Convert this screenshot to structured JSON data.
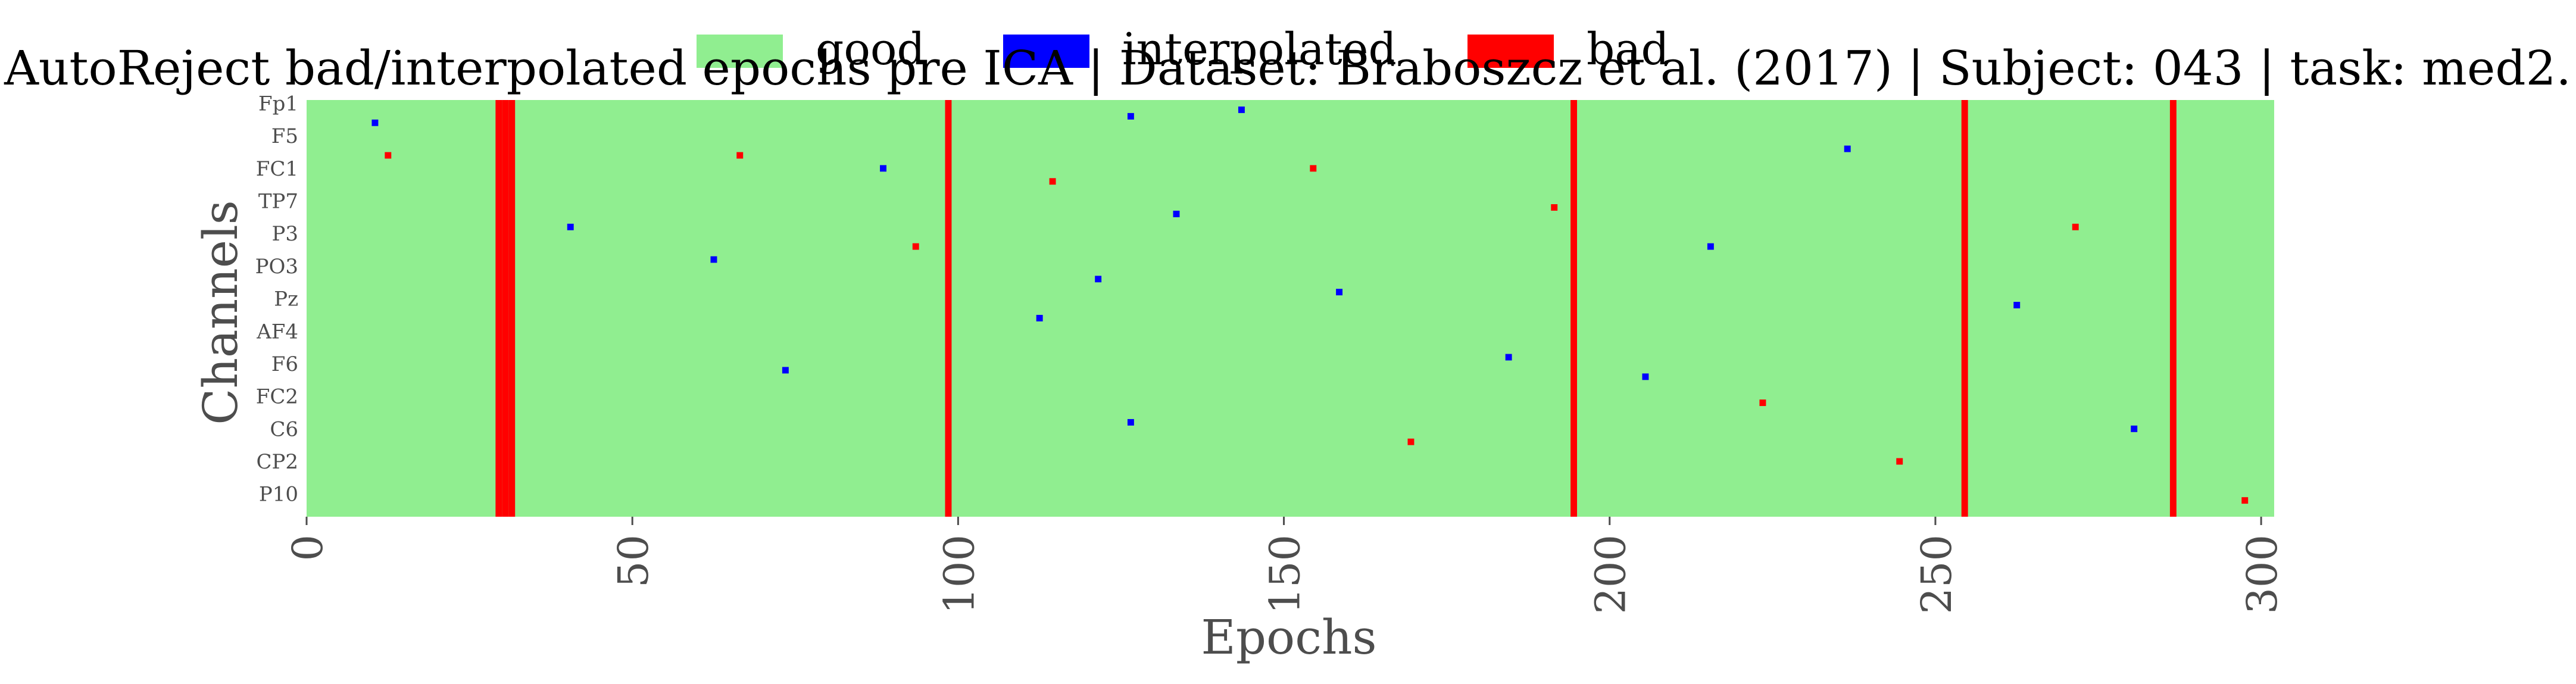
{
  "chart_data": {
    "type": "heatmap",
    "title": "AutoReject bad/interpolated epochs pre ICA | Dataset: Braboszcz et al. (2017) | Subject: 043 | task: med2.",
    "xlabel": "Epochs",
    "ylabel": "Channels",
    "xlim": [
      0,
      302
    ],
    "x_ticks": [
      0,
      50,
      100,
      150,
      200,
      250,
      300
    ],
    "n_epochs": 302,
    "n_channels": 64,
    "y_tick_labels": [
      "Fp1",
      "F5",
      "FC1",
      "TP7",
      "P3",
      "PO3",
      "Pz",
      "AF4",
      "F6",
      "FC2",
      "C6",
      "CP2",
      "P10"
    ],
    "y_tick_rows": [
      0,
      5,
      10,
      15,
      20,
      25,
      30,
      35,
      40,
      45,
      50,
      55,
      60
    ],
    "legend": {
      "placement": "top-center",
      "entries": [
        {
          "label": "good",
          "color": "#90ee90"
        },
        {
          "label": "interpolated",
          "color": "#0000ff"
        },
        {
          "label": "bad",
          "color": "#ff0000"
        }
      ]
    },
    "colors": {
      "good": "#90ee90",
      "interpolated": "#0000ff",
      "bad": "#ff0000"
    },
    "bad_epoch_columns": [
      29,
      30,
      31,
      98,
      194,
      254,
      286
    ],
    "sparse_cells": [
      {
        "status": "interpolated",
        "row": 3,
        "epoch": 10
      },
      {
        "status": "bad",
        "row": 8,
        "epoch": 12
      },
      {
        "status": "interpolated",
        "row": 19,
        "epoch": 40
      },
      {
        "status": "interpolated",
        "row": 24,
        "epoch": 62
      },
      {
        "status": "bad",
        "row": 8,
        "epoch": 66
      },
      {
        "status": "interpolated",
        "row": 41,
        "epoch": 73
      },
      {
        "status": "interpolated",
        "row": 10,
        "epoch": 88
      },
      {
        "status": "bad",
        "row": 22,
        "epoch": 93
      },
      {
        "status": "interpolated",
        "row": 33,
        "epoch": 112
      },
      {
        "status": "bad",
        "row": 12,
        "epoch": 114
      },
      {
        "status": "interpolated",
        "row": 27,
        "epoch": 121
      },
      {
        "status": "interpolated",
        "row": 2,
        "epoch": 126
      },
      {
        "status": "interpolated",
        "row": 49,
        "epoch": 126
      },
      {
        "status": "interpolated",
        "row": 17,
        "epoch": 133
      },
      {
        "status": "interpolated",
        "row": 1,
        "epoch": 143
      },
      {
        "status": "bad",
        "row": 10,
        "epoch": 154
      },
      {
        "status": "interpolated",
        "row": 29,
        "epoch": 158
      },
      {
        "status": "bad",
        "row": 52,
        "epoch": 169
      },
      {
        "status": "interpolated",
        "row": 39,
        "epoch": 184
      },
      {
        "status": "bad",
        "row": 16,
        "epoch": 191
      },
      {
        "status": "interpolated",
        "row": 42,
        "epoch": 205
      },
      {
        "status": "interpolated",
        "row": 22,
        "epoch": 215
      },
      {
        "status": "bad",
        "row": 46,
        "epoch": 223
      },
      {
        "status": "interpolated",
        "row": 7,
        "epoch": 236
      },
      {
        "status": "bad",
        "row": 55,
        "epoch": 244
      },
      {
        "status": "interpolated",
        "row": 31,
        "epoch": 262
      },
      {
        "status": "bad",
        "row": 19,
        "epoch": 271
      },
      {
        "status": "interpolated",
        "row": 50,
        "epoch": 280
      },
      {
        "status": "bad",
        "row": 61,
        "epoch": 297
      }
    ]
  }
}
